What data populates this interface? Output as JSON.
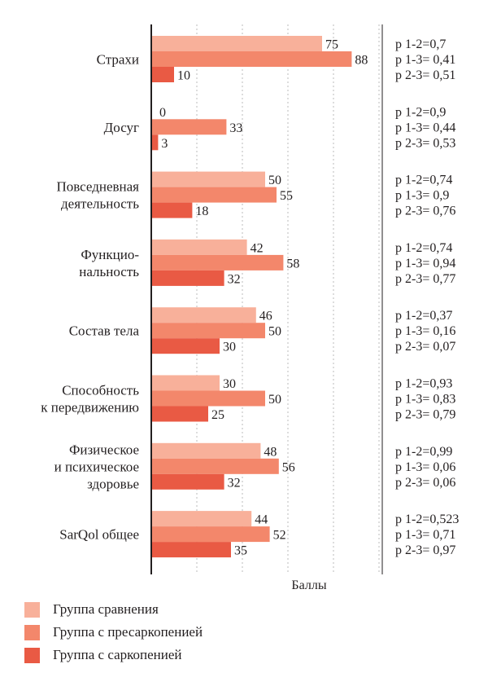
{
  "colors": {
    "series1": "#f8b09a",
    "series2": "#f3876b",
    "series3": "#e95a44",
    "axis": "#231f20",
    "grid": "#bbbbbb"
  },
  "chart_data": {
    "type": "bar",
    "orientation": "horizontal",
    "categories": [
      [
        "Страхи"
      ],
      [
        "Досуг"
      ],
      [
        "Повседневная",
        "деятельность"
      ],
      [
        "Функцио-",
        "нальность"
      ],
      [
        "Состав тела"
      ],
      [
        "Способность",
        "к передвижению"
      ],
      [
        "Физическое",
        "и психическое",
        "здоровье"
      ],
      [
        "SarQol общее"
      ]
    ],
    "series": [
      {
        "name": "Группа сравнения",
        "values": [
          75,
          0,
          50,
          42,
          46,
          30,
          48,
          44
        ]
      },
      {
        "name": "Группа с пресаркопенией",
        "values": [
          88,
          33,
          55,
          58,
          50,
          50,
          56,
          52
        ]
      },
      {
        "name": "Группа с саркопенией",
        "values": [
          10,
          3,
          18,
          32,
          30,
          25,
          32,
          35
        ]
      }
    ],
    "p_values": [
      [
        "p 1-2=0,7",
        "p 1-3= 0,41",
        "p 2-3= 0,51"
      ],
      [
        "p 1-2=0,9",
        "p 1-3= 0,44",
        "p 2-3= 0,53"
      ],
      [
        "p 1-2=0,74",
        "p 1-3= 0,9",
        "p 2-3= 0,76"
      ],
      [
        "p 1-2=0,74",
        "p 1-3= 0,94",
        "p 2-3= 0,77"
      ],
      [
        "p 1-2=0,37",
        "p 1-3= 0,16",
        "p 2-3= 0,07"
      ],
      [
        "p 1-2=0,93",
        "p 1-3= 0,83",
        "p 2-3= 0,79"
      ],
      [
        "p 1-2=0,99",
        "p 1-3= 0,06",
        "p 2-3= 0,06"
      ],
      [
        "p 1-2=0,523",
        "p 1-3= 0,71",
        "p 2-3= 0,97"
      ]
    ],
    "xlabel": "Баллы",
    "xlim": [
      0,
      100
    ],
    "grid": true,
    "legend_position": "bottom-left"
  }
}
